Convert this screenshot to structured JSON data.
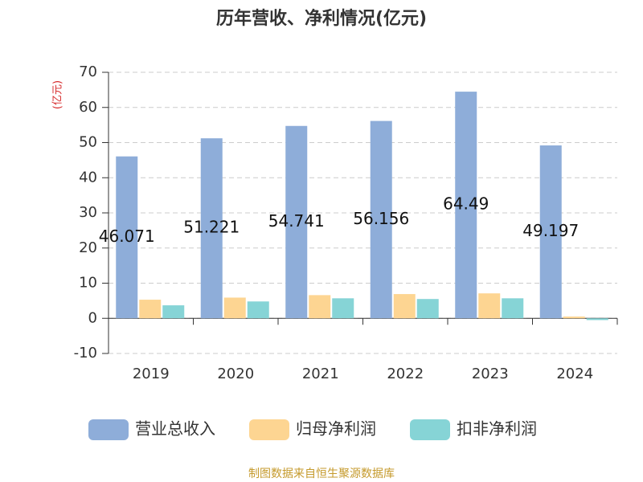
{
  "chart_data": {
    "type": "bar",
    "title": "历年营收、净利情况(亿元)",
    "y_label": "(亿元)",
    "source": "制图数据来自恒生聚源数据库",
    "categories": [
      "2019",
      "2020",
      "2021",
      "2022",
      "2023",
      "2024"
    ],
    "series": [
      {
        "name": "营业总收入",
        "color": "#8eadd9",
        "values": [
          46.071,
          51.221,
          54.741,
          56.156,
          64.49,
          49.197
        ],
        "show_labels": true
      },
      {
        "name": "归母净利润",
        "color": "#fdd592",
        "values": [
          5.3,
          5.9,
          6.6,
          6.9,
          7.1,
          0.5
        ]
      },
      {
        "name": "扣非净利润",
        "color": "#86d4d6",
        "values": [
          3.7,
          4.8,
          5.7,
          5.5,
          5.7,
          -0.5
        ]
      }
    ],
    "ylim": [
      -10,
      70
    ],
    "yticks": [
      -10,
      0,
      10,
      20,
      30,
      40,
      50,
      60,
      70
    ],
    "grid": true
  }
}
